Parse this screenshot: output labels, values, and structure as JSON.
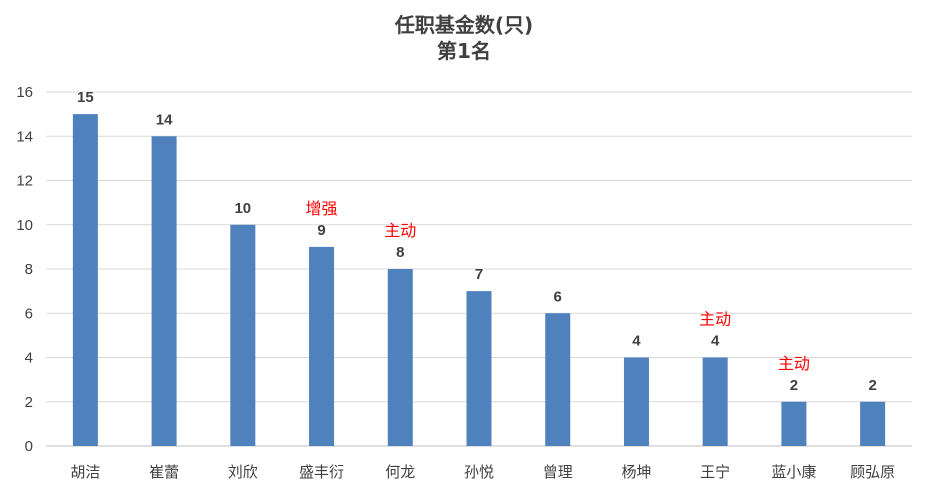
{
  "chart_data": {
    "type": "bar",
    "title": "任职基金数(只)",
    "subtitle": "第1名",
    "categories": [
      "胡洁",
      "崔蕾",
      "刘欣",
      "盛丰衍",
      "何龙",
      "孙悦",
      "曾理",
      "杨坤",
      "王宁",
      "蓝小康",
      "顾弘原"
    ],
    "values": [
      15,
      14,
      10,
      9,
      8,
      7,
      6,
      4,
      4,
      2,
      2
    ],
    "annotations": [
      {
        "category": "盛丰衍",
        "text": "增强"
      },
      {
        "category": "何龙",
        "text": "主动"
      },
      {
        "category": "王宁",
        "text": "主动"
      },
      {
        "category": "蓝小康",
        "text": "主动"
      }
    ],
    "ylim": [
      0,
      16
    ],
    "yticks": [
      0,
      2,
      4,
      6,
      8,
      10,
      12,
      14,
      16
    ],
    "grid": true,
    "bar_color": "#4f81bd",
    "annotation_color": "#ff0000"
  }
}
